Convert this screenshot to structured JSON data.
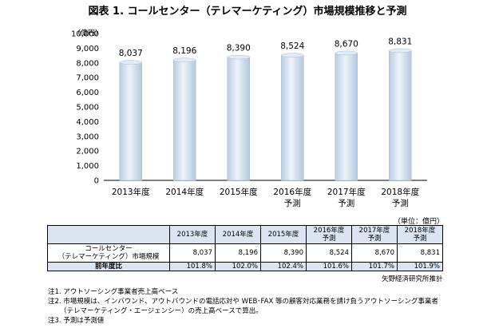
{
  "title": "図表 1. コールセンター（テレマーケティング）市場規模推移と予測",
  "chart_data": {
    "type": "bar",
    "yunit": "（億円）",
    "ylim": [
      0,
      10000
    ],
    "yticks": [
      "0",
      "1,000",
      "2,000",
      "3,000",
      "4,000",
      "5,000",
      "6,000",
      "7,000",
      "8,000",
      "9,000",
      "10,000"
    ],
    "categories": [
      {
        "year": "2013年度",
        "sub": ""
      },
      {
        "year": "2014年度",
        "sub": ""
      },
      {
        "year": "2015年度",
        "sub": ""
      },
      {
        "year": "2016年度",
        "sub": "予測"
      },
      {
        "year": "2017年度",
        "sub": "予測"
      },
      {
        "year": "2018年度",
        "sub": "予測"
      }
    ],
    "values": [
      8037,
      8196,
      8390,
      8524,
      8670,
      8831
    ],
    "labels": [
      "8,037",
      "8,196",
      "8,390",
      "8,524",
      "8,670",
      "8,831"
    ],
    "grid": false,
    "bar_color": "#d6e3f0"
  },
  "table": {
    "unit": "（単位：億円）",
    "headers": [
      "",
      "2013年度",
      "2014年度",
      "2015年度",
      "2016年度\n予測",
      "2017年度\n予測",
      "2018年度\n予測"
    ],
    "row_size": {
      "label": "コールセンター\n（テレマーケティング）市場規模",
      "values": [
        "8,037",
        "8,196",
        "8,390",
        "8,524",
        "8,670",
        "8,831"
      ]
    },
    "row_yoy": {
      "label": "前年度比",
      "values": [
        "101.8%",
        "102.0%",
        "102.4%",
        "101.6%",
        "101.7%",
        "101.9%"
      ]
    }
  },
  "source": "矢野経済研究所推計",
  "notes": [
    "注1. アウトソーシング事業者売上高ベース",
    "注2. 市場規模は、インバウンド、アウトバウンドの電話応対や WEB･FAX 等の顧客対応業務を請け負うアウトソーシング事業者",
    "（テレマーケティング・エージェンシー）の売上高ベースで算出。",
    "注3. 予測は予測値"
  ]
}
